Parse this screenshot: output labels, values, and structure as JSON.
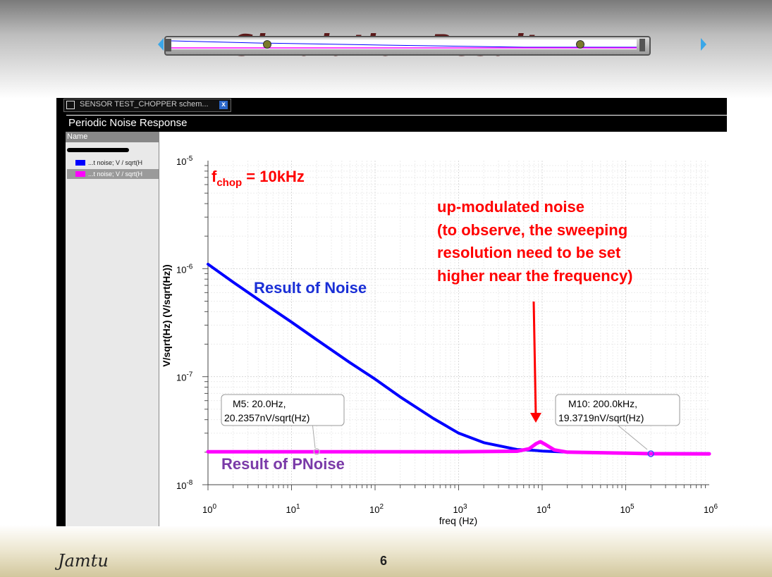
{
  "slide": {
    "title": "Simulation Result",
    "author": "Jamtu",
    "page_number": "6"
  },
  "window": {
    "tab_label": "SENSOR TEST_CHOPPER schem...",
    "tab_close": "x",
    "panel_title": "Periodic Noise Response",
    "legend_header": "Name",
    "legend_items": [
      {
        "label": "...t noise; V / sqrt(H",
        "color": "#0000ff"
      },
      {
        "label": "...t noise; V / sqrt(H",
        "color": "#ff00ff"
      }
    ]
  },
  "annotations": {
    "fchop_main": "f",
    "fchop_sub": "chop",
    "fchop_value": " = 10kHz",
    "upmod_lines": [
      "up-modulated noise",
      "(to observe, the sweeping",
      "resolution need to be set",
      "higher near the frequency)"
    ],
    "noise_label": "Result of Noise",
    "pnoise_label": "Result of PNoise",
    "marker_m5": [
      "M5: 20.0Hz,",
      "20.2357nV/sqrt(Hz)"
    ],
    "marker_m10": [
      "M10: 200.0kHz,",
      "19.3719nV/sqrt(Hz)"
    ]
  },
  "chart_data": {
    "type": "line",
    "xscale": "log",
    "yscale": "log",
    "xlabel": "freq (Hz)",
    "ylabel": "V/sqrt(Hz) (V/sqrt(Hz))",
    "xlim": [
      1,
      1000000
    ],
    "ylim": [
      1e-08,
      1e-05
    ],
    "x_tick_labels": [
      {
        "base": "10",
        "exp": "0"
      },
      {
        "base": "10",
        "exp": "1"
      },
      {
        "base": "10",
        "exp": "2"
      },
      {
        "base": "10",
        "exp": "3"
      },
      {
        "base": "10",
        "exp": "4"
      },
      {
        "base": "10",
        "exp": "5"
      },
      {
        "base": "10",
        "exp": "6"
      }
    ],
    "y_tick_labels": [
      {
        "base": "10",
        "exp": "-5"
      },
      {
        "base": "10",
        "exp": "-6"
      },
      {
        "base": "10",
        "exp": "-7"
      },
      {
        "base": "10",
        "exp": "-8"
      }
    ],
    "series": [
      {
        "color": "#0000ff",
        "x": [
          1,
          2,
          5,
          10,
          20,
          50,
          100,
          200,
          500,
          1000,
          2000,
          5000,
          8000,
          10000,
          20000,
          50000,
          100000,
          1000000
        ],
        "y": [
          1.1e-06,
          7.5e-07,
          4.6e-07,
          3.2e-07,
          2.2e-07,
          1.35e-07,
          9.5e-08,
          6.5e-08,
          4.1e-08,
          3e-08,
          2.45e-08,
          2.12e-08,
          2.08e-08,
          2.05e-08,
          2e-08,
          1.97e-08,
          1.95e-08,
          1.94e-08
        ]
      },
      {
        "color": "#ff00ff",
        "x": [
          1,
          10,
          100,
          1000,
          5000,
          7000,
          8500,
          9500,
          11000,
          14000,
          20000,
          100000,
          200000,
          1000000
        ],
        "y": [
          2.02e-08,
          2.02e-08,
          2.02e-08,
          2.02e-08,
          2.04e-08,
          2.15e-08,
          2.4e-08,
          2.5e-08,
          2.35e-08,
          2.1e-08,
          2e-08,
          1.96e-08,
          1.937e-08,
          1.93e-08
        ]
      }
    ],
    "markers": [
      {
        "name": "M5",
        "x": 20,
        "y": 2.02357e-08,
        "color": "#c0c0c0"
      },
      {
        "name": "M10",
        "x": 200000,
        "y": 1.93719e-08,
        "color": "#4444ff"
      }
    ],
    "grid": true
  }
}
